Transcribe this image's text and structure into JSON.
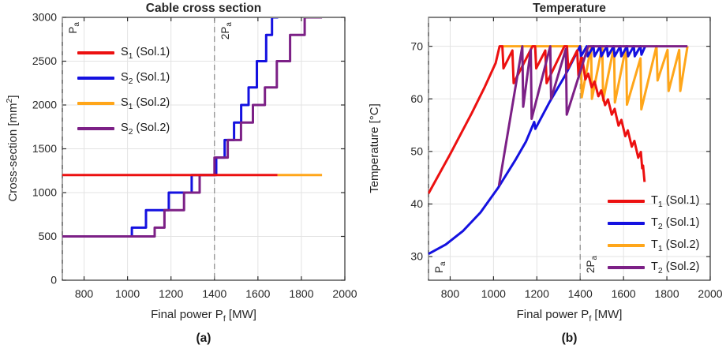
{
  "styles": {
    "background": "#ffffff",
    "grid_color": "#e3e3e3",
    "axis_color": "#2e2e2e",
    "dash_color": "#8a8a8a",
    "text_color": "#262626",
    "red": "#ec1010",
    "blue": "#1411e0",
    "orange": "#ffa61a",
    "purple": "#7c2086"
  },
  "panels": [
    {
      "caption": "(a)",
      "xlabel_parts": [
        {
          "t": "Final power P"
        },
        {
          "sub": "f"
        },
        {
          "t": " [MW]"
        }
      ],
      "ylabel_parts": [
        {
          "t": "Cross-section [mm"
        },
        {
          "sup": "2"
        },
        {
          "t": "]"
        }
      ],
      "legend": {
        "position": "upper-left",
        "items": [
          {
            "series": 0,
            "parts": [
              {
                "t": "S"
              },
              {
                "sub": "1"
              },
              {
                "t": " (Sol.1)"
              }
            ]
          },
          {
            "series": 1,
            "parts": [
              {
                "t": "S"
              },
              {
                "sub": "2"
              },
              {
                "t": " (Sol.1)"
              }
            ]
          },
          {
            "series": 2,
            "parts": [
              {
                "t": "S"
              },
              {
                "sub": "1"
              },
              {
                "t": " (Sol.2)"
              }
            ]
          },
          {
            "series": 3,
            "parts": [
              {
                "t": "S"
              },
              {
                "sub": "2"
              },
              {
                "t": " (Sol.2)"
              }
            ]
          }
        ]
      },
      "annotations": [
        {
          "x": 700,
          "parts": [
            {
              "t": "P"
            },
            {
              "sub": "a"
            }
          ],
          "align": "top"
        },
        {
          "x": 1400,
          "parts": [
            {
              "t": "2P"
            },
            {
              "sub": "a"
            }
          ],
          "align": "top"
        }
      ]
    },
    {
      "caption": "(b)",
      "xlabel_parts": [
        {
          "t": "Final power P"
        },
        {
          "sub": "f"
        },
        {
          "t": " [MW]"
        }
      ],
      "ylabel_parts": [
        {
          "t": "Temperature [°C]"
        }
      ],
      "legend": {
        "position": "lower-right",
        "items": [
          {
            "series": 0,
            "parts": [
              {
                "t": "T"
              },
              {
                "sub": "1"
              },
              {
                "t": " (Sol.1)"
              }
            ]
          },
          {
            "series": 1,
            "parts": [
              {
                "t": "T"
              },
              {
                "sub": "2"
              },
              {
                "t": " (Sol.1)"
              }
            ]
          },
          {
            "series": 2,
            "parts": [
              {
                "t": "T"
              },
              {
                "sub": "1"
              },
              {
                "t": " (Sol.2)"
              }
            ]
          },
          {
            "series": 3,
            "parts": [
              {
                "t": "T"
              },
              {
                "sub": "2"
              },
              {
                "t": " (Sol.2)"
              }
            ]
          }
        ]
      },
      "annotations": [
        {
          "x": 700,
          "parts": [
            {
              "t": "P"
            },
            {
              "sub": "a"
            }
          ],
          "align": "bottom"
        },
        {
          "x": 1400,
          "parts": [
            {
              "t": "2P"
            },
            {
              "sub": "a"
            }
          ],
          "align": "bottom"
        }
      ]
    }
  ],
  "chart_data": [
    {
      "type": "line",
      "title": "Cable cross section",
      "xlabel": "Final power P_f [MW]",
      "ylabel": "Cross-section [mm^2]",
      "xlim": [
        700,
        2000
      ],
      "ylim": [
        0,
        3000
      ],
      "xticks": [
        800,
        1000,
        1200,
        1400,
        1600,
        1800,
        2000
      ],
      "yticks": [
        0,
        500,
        1000,
        1500,
        2000,
        2500,
        3000
      ],
      "grid": true,
      "legend_position": "upper-left",
      "vlines": [
        {
          "x": 700,
          "label": "P_a"
        },
        {
          "x": 1400,
          "label": "2P_a"
        }
      ],
      "series": [
        {
          "name": "S_1 (Sol.1)",
          "color": "#ec1010",
          "mode": "steps",
          "z": 4,
          "steps": [
            [
              1200,
              700,
              1690
            ]
          ]
        },
        {
          "name": "S_2 (Sol.1)",
          "color": "#1411e0",
          "mode": "steps",
          "z": 1,
          "steps": [
            [
              500,
              700,
              1020
            ],
            [
              600,
              1020,
              1085
            ],
            [
              800,
              1085,
              1190
            ],
            [
              1000,
              1190,
              1295
            ],
            [
              1200,
              1295,
              1408
            ],
            [
              1400,
              1408,
              1447
            ],
            [
              1600,
              1447,
              1490
            ],
            [
              1800,
              1490,
              1523
            ],
            [
              2000,
              1523,
              1557
            ],
            [
              2200,
              1557,
              1595
            ],
            [
              2500,
              1595,
              1638
            ],
            [
              2800,
              1638,
              1665
            ],
            [
              3000,
              1665,
              1693
            ]
          ]
        },
        {
          "name": "S_1 (Sol.2)",
          "color": "#ffa61a",
          "mode": "steps",
          "z": 2,
          "steps": [
            [
              1200,
              1690,
              1895
            ]
          ]
        },
        {
          "name": "S_2 (Sol.2)",
          "color": "#7c2086",
          "mode": "steps",
          "z": 3,
          "steps": [
            [
              500,
              700,
              1125
            ],
            [
              600,
              1125,
              1170
            ],
            [
              800,
              1170,
              1260
            ],
            [
              1000,
              1260,
              1332
            ],
            [
              1200,
              1332,
              1400
            ],
            [
              1400,
              1400,
              1461
            ],
            [
              1600,
              1461,
              1522
            ],
            [
              1800,
              1522,
              1577
            ],
            [
              2000,
              1577,
              1632
            ],
            [
              2200,
              1632,
              1687
            ],
            [
              2500,
              1687,
              1748
            ],
            [
              2800,
              1748,
              1815
            ],
            [
              3000,
              1815,
              1895
            ]
          ]
        }
      ]
    },
    {
      "type": "line",
      "title": "Temperature",
      "xlabel": "Final power P_f [MW]",
      "ylabel": "Temperature [degC]",
      "xlim": [
        700,
        2000
      ],
      "ylim": [
        25.5,
        75.5
      ],
      "xticks": [
        800,
        1000,
        1200,
        1400,
        1600,
        1800,
        2000
      ],
      "yticks": [
        30,
        40,
        50,
        60,
        70
      ],
      "grid": true,
      "legend_position": "lower-right",
      "vlines": [
        {
          "x": 700,
          "label": "P_a"
        },
        {
          "x": 1400,
          "label": "2P_a"
        }
      ],
      "series": [
        {
          "name": "T_1 (Sol.1)",
          "color": "#ec1010",
          "mode": "line",
          "z": 3,
          "points": [
            [
              700,
              42
            ],
            [
              800,
              49.5
            ],
            [
              900,
              57.3
            ],
            [
              960,
              62.3
            ],
            [
              1010,
              66.8
            ],
            [
              1028,
              70
            ],
            [
              1041,
              70
            ],
            [
              1046,
              65.8
            ],
            [
              1087,
              69.2
            ],
            [
              1093,
              63
            ],
            [
              1180,
              70
            ],
            [
              1192,
              70
            ],
            [
              1197,
              65.8
            ],
            [
              1239,
              69.2
            ],
            [
              1245,
              63
            ],
            [
              1327,
              70
            ],
            [
              1339,
              70
            ],
            [
              1344,
              65.8
            ],
            [
              1386,
              69.2
            ],
            [
              1392,
              64.5
            ],
            [
              1404,
              67.8
            ],
            [
              1409,
              67.8
            ],
            [
              1424,
              63.7
            ],
            [
              1437,
              64.8
            ],
            [
              1453,
              62.2
            ],
            [
              1466,
              63.3
            ],
            [
              1484,
              60.5
            ],
            [
              1497,
              61.6
            ],
            [
              1515,
              58.8
            ],
            [
              1528,
              59.9
            ],
            [
              1546,
              57
            ],
            [
              1559,
              58.1
            ],
            [
              1577,
              54.9
            ],
            [
              1590,
              56
            ],
            [
              1608,
              52.9
            ],
            [
              1620,
              54
            ],
            [
              1638,
              50.9
            ],
            [
              1650,
              52
            ],
            [
              1668,
              48.8
            ],
            [
              1680,
              49.9
            ],
            [
              1686,
              46.8
            ],
            [
              1690,
              47.3
            ],
            [
              1697,
              44.2
            ]
          ]
        },
        {
          "name": "T_2 (Sol.1)",
          "color": "#1411e0",
          "mode": "line",
          "z": 2,
          "points": [
            [
              700,
              30.5
            ],
            [
              780,
              32.3
            ],
            [
              860,
              34.9
            ],
            [
              940,
              38.4
            ],
            [
              1020,
              43
            ],
            [
              1100,
              48.3
            ],
            [
              1150,
              51.9
            ],
            [
              1188,
              55.6
            ],
            [
              1193,
              54.3
            ],
            [
              1260,
              59.5
            ],
            [
              1330,
              64.4
            ],
            [
              1399,
              70
            ],
            [
              1404,
              68.1
            ],
            [
              1430,
              70
            ],
            [
              1435,
              68.1
            ],
            [
              1461,
              70
            ],
            [
              1466,
              68.1
            ],
            [
              1492,
              70
            ],
            [
              1497,
              68.1
            ],
            [
              1523,
              70
            ],
            [
              1528,
              68.1
            ],
            [
              1554,
              70
            ],
            [
              1559,
              68.1
            ],
            [
              1585,
              70
            ],
            [
              1590,
              68.1
            ],
            [
              1616,
              70
            ],
            [
              1621,
              68.1
            ],
            [
              1647,
              70
            ],
            [
              1652,
              68.1
            ],
            [
              1678,
              70
            ],
            [
              1683,
              68.4
            ],
            [
              1700,
              70
            ]
          ]
        },
        {
          "name": "T_1 (Sol.2)",
          "color": "#ffa61a",
          "mode": "line",
          "z": 1,
          "points": [
            [
              1028,
              70
            ],
            [
              1403,
              70
            ],
            [
              1407,
              60.3
            ],
            [
              1450,
              70
            ],
            [
              1454,
              60
            ],
            [
              1502,
              70
            ],
            [
              1506,
              59.7
            ],
            [
              1556,
              70
            ],
            [
              1560,
              59.3
            ],
            [
              1612,
              70
            ],
            [
              1616,
              58.9
            ],
            [
              1678,
              67.7
            ],
            [
              1682,
              58
            ],
            [
              1752,
              70
            ],
            [
              1757,
              63.5
            ],
            [
              1803,
              69.3
            ],
            [
              1808,
              61.5
            ],
            [
              1857,
              69.3
            ],
            [
              1862,
              61.5
            ],
            [
              1895,
              70
            ]
          ]
        },
        {
          "name": "T_2 (Sol.2)",
          "color": "#7c2086",
          "mode": "line",
          "z": 4,
          "points": [
            [
              1025,
              43.5
            ],
            [
              1133,
              70
            ],
            [
              1137,
              58.5
            ],
            [
              1172,
              69.4
            ],
            [
              1176,
              56.2
            ],
            [
              1262,
              70
            ],
            [
              1266,
              60
            ],
            [
              1334,
              69.5
            ],
            [
              1338,
              57
            ],
            [
              1437,
              70
            ],
            [
              1895,
              70
            ]
          ]
        }
      ]
    }
  ]
}
